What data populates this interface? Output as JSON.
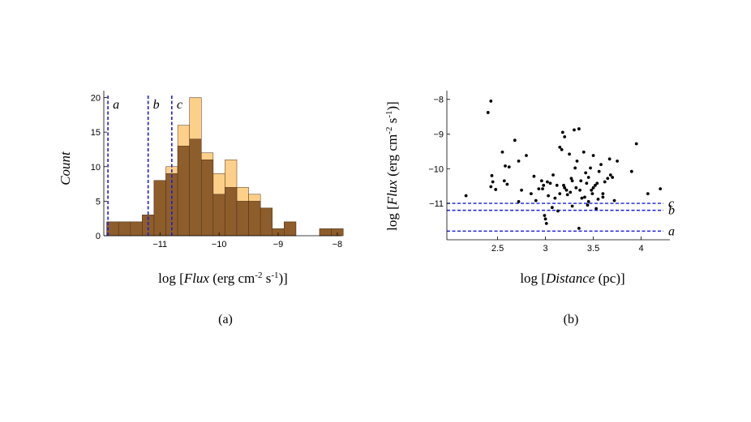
{
  "colors": {
    "bar_light": "#fdd08a",
    "bar_dark": "#8e5d2c",
    "bar_edge": "#4d3015",
    "threshold_line": "#1a1ae0",
    "point": "#000000"
  },
  "chart_data": [
    {
      "type": "bar",
      "title": "",
      "panel_label": "(a)",
      "xlabel": {
        "prefix": "log [",
        "var": "Flux",
        "mid": " (erg cm",
        "exp1": "-2",
        "mid2": " s",
        "exp2": "-1",
        "suffix": ")]"
      },
      "ylabel": "Count",
      "xlim": [
        -11.95,
        -7.93
      ],
      "ylim": [
        0,
        21
      ],
      "xticks": [
        -11,
        -10,
        -9,
        -8
      ],
      "xtick_labels": [
        "−11",
        "−10",
        "−9",
        "−8"
      ],
      "yticks": [
        0,
        5,
        10,
        15,
        20
      ],
      "ytick_labels": [
        "0",
        "5",
        "10",
        "15",
        "20"
      ],
      "bin_width": 0.2,
      "bin_starts": [
        -11.9,
        -11.7,
        -11.5,
        -11.3,
        -11.1,
        -10.9,
        -10.7,
        -10.5,
        -10.3,
        -10.1,
        -9.9,
        -9.7,
        -9.5,
        -9.3,
        -9.1,
        -8.9,
        -8.7,
        -8.5,
        -8.3,
        -8.1
      ],
      "series": [
        {
          "name": "total",
          "color_key": "bar_light",
          "values": [
            2,
            2,
            2,
            3,
            8,
            10,
            16,
            20,
            12,
            9,
            11,
            7,
            6,
            4,
            1,
            2,
            0,
            0,
            1,
            1
          ]
        },
        {
          "name": "subset",
          "color_key": "bar_dark",
          "values": [
            2,
            2,
            2,
            3,
            8,
            9,
            13,
            14,
            11,
            6,
            7,
            5,
            5,
            4,
            1,
            2,
            0,
            0,
            1,
            1
          ]
        }
      ],
      "threshold_lines": [
        {
          "label": "a",
          "x": -11.88
        },
        {
          "label": "b",
          "x": -11.2
        },
        {
          "label": "c",
          "x": -10.8
        }
      ]
    },
    {
      "type": "scatter",
      "title": "",
      "panel_label": "(b)",
      "xlabel": {
        "prefix": "log [",
        "var": "Distance",
        "suffix": " (pc)]"
      },
      "ylabel": {
        "prefix": "log [",
        "var": "Flux",
        "mid": " (erg cm",
        "exp1": "-2",
        "mid2": " s",
        "exp2": "-1",
        "suffix": ")]"
      },
      "xlim": [
        1.97,
        4.3
      ],
      "ylim": [
        -12.05,
        -7.75
      ],
      "xticks": [
        2.5,
        3,
        3.5,
        4
      ],
      "xtick_labels": [
        "2.5",
        "3",
        "3.5",
        "4"
      ],
      "yticks": [
        -8,
        -9,
        -10,
        -11
      ],
      "ytick_labels": [
        "−8",
        "−9",
        "−10",
        "−11"
      ],
      "x": [
        2.43,
        2.4,
        2.17,
        2.44,
        2.45,
        2.48,
        2.43,
        2.55,
        2.58,
        2.62,
        2.6,
        2.68,
        2.72,
        2.75,
        2.8,
        2.85,
        2.88,
        2.93,
        2.96,
        2.97,
        2.99,
        3.0,
        3.03,
        3.05,
        3.08,
        3.1,
        3.12,
        3.15,
        3.17,
        3.18,
        3.2,
        3.22,
        3.23,
        3.25,
        3.27,
        3.28,
        3.3,
        3.32,
        3.33,
        3.35,
        3.36,
        3.38,
        3.4,
        3.42,
        3.43,
        3.45,
        3.47,
        3.48,
        3.5,
        3.52,
        3.53,
        3.55,
        3.56,
        3.58,
        3.6,
        3.62,
        3.65,
        3.67,
        3.7,
        3.72,
        3.75,
        3.9,
        3.95,
        4.07,
        4.2,
        2.72,
        2.9,
        3.02,
        3.13,
        3.19,
        3.26,
        3.31,
        3.37,
        3.41,
        3.44,
        3.49,
        3.54,
        3.68,
        3.01,
        2.57,
        3.2,
        3.35,
        3.6,
        3.28,
        2.98,
        3.07,
        3.45,
        3.15,
        3.5
      ],
      "y": [
        -8.05,
        -8.38,
        -10.78,
        -10.2,
        -10.38,
        -10.6,
        -10.52,
        -9.52,
        -9.92,
        -9.95,
        -10.45,
        -9.18,
        -9.78,
        -10.62,
        -9.62,
        -10.72,
        -10.22,
        -10.58,
        -10.35,
        -10.58,
        -11.35,
        -11.45,
        -10.78,
        -10.42,
        -10.18,
        -10.85,
        -10.48,
        -9.38,
        -9.45,
        -8.95,
        -9.08,
        -10.62,
        -10.75,
        -9.58,
        -10.28,
        -10.35,
        -8.88,
        -10.55,
        -9.78,
        -8.85,
        -10.62,
        -10.85,
        -9.52,
        -10.12,
        -10.42,
        -10.25,
        -9.98,
        -10.62,
        -9.62,
        -10.48,
        -11.15,
        -10.88,
        -10.08,
        -9.88,
        -10.72,
        -10.38,
        -10.28,
        -9.72,
        -10.25,
        -10.92,
        -9.78,
        -10.08,
        -9.28,
        -10.72,
        -10.58,
        -10.95,
        -10.92,
        -10.38,
        -11.22,
        -10.48,
        -10.68,
        -9.98,
        -10.35,
        -10.82,
        -11.05,
        -10.72,
        -10.42,
        -10.18,
        -11.58,
        -10.35,
        -10.55,
        -11.72,
        -10.82,
        -11.08,
        -10.48,
        -11.12,
        -10.95,
        -10.72,
        -10.55
      ],
      "threshold_lines": [
        {
          "label": "c",
          "y": -11.0
        },
        {
          "label": "b",
          "y": -11.2
        },
        {
          "label": "a",
          "y": -11.8
        }
      ]
    }
  ]
}
